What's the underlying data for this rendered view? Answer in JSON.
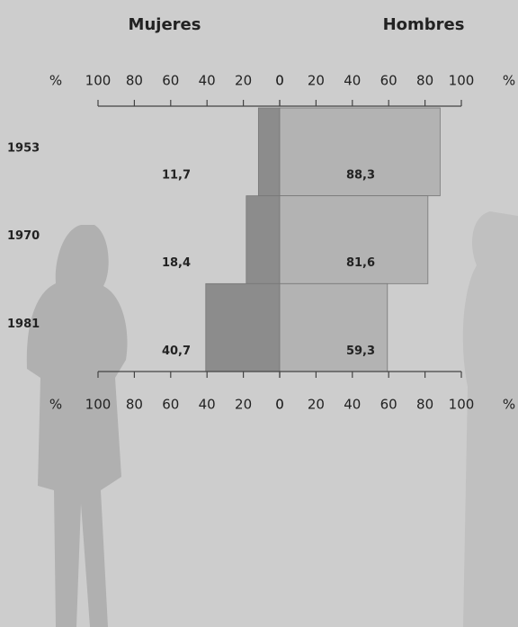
{
  "chart_data": {
    "type": "butterfly_bar",
    "unit_label": "%",
    "categories": [
      "1953",
      "1970",
      "1981"
    ],
    "series": [
      {
        "name": "Mujeres",
        "color": "#8c8c8c",
        "values": [
          11.7,
          18.4,
          40.7
        ],
        "value_labels": [
          "11,7",
          "18,4",
          "40,7"
        ]
      },
      {
        "name": "Hombres",
        "color": "#b3b3b3",
        "values": [
          88.3,
          81.6,
          59.3
        ],
        "value_labels": [
          "88,3",
          "81,6",
          "59,3"
        ]
      }
    ],
    "xlim": [
      0,
      100
    ],
    "xticks": [
      0,
      20,
      40,
      60,
      80,
      100
    ],
    "grid": false
  }
}
